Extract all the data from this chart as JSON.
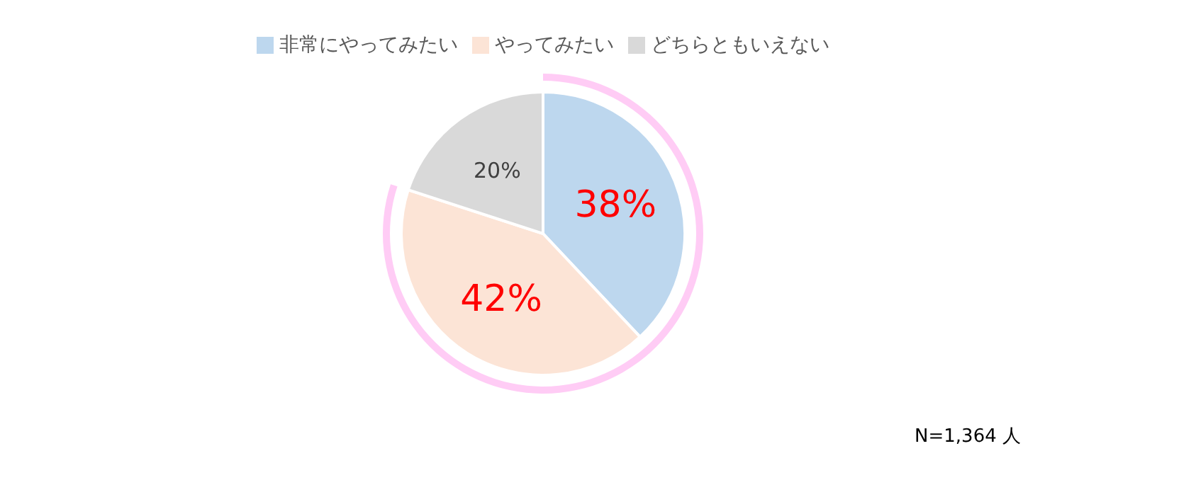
{
  "chart_data": {
    "type": "pie",
    "categories": [
      "非常にやってみたい",
      "やってみたい",
      "どちらともいえない"
    ],
    "values": [
      38,
      42,
      20
    ],
    "colors": [
      "#bdd7ee",
      "#fce4d6",
      "#d9d9d9"
    ],
    "value_labels": [
      "38%",
      "42%",
      "20%"
    ],
    "legend": "top",
    "annotations": [
      "N=1,364 人"
    ]
  }
}
